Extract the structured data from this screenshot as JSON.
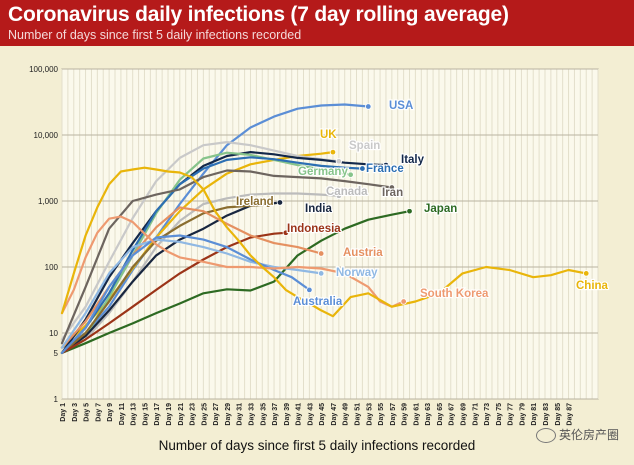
{
  "header": {
    "title": "Coronavirus daily infections (7 day rolling average)",
    "subtitle": "Number of days since first 5 daily infections recorded"
  },
  "watermark": "英伦房产圈",
  "colors": {
    "header_bg": "#b51a1a",
    "chart_bg": "#fbf9ec",
    "grid": "#e3dfcb"
  },
  "chart_data": {
    "type": "line",
    "y_scale": "log",
    "ylim": [
      1,
      100000
    ],
    "y_ticks": [
      {
        "value": 1,
        "label": "1"
      },
      {
        "value": 5,
        "label": "5"
      },
      {
        "value": 10,
        "label": "10"
      },
      {
        "value": 100,
        "label": "100"
      },
      {
        "value": 1000,
        "label": "1,000"
      },
      {
        "value": 10000,
        "label": "10,000"
      },
      {
        "value": 100000,
        "label": "100,000"
      }
    ],
    "xlim": [
      1,
      92
    ],
    "x_ticks": [
      "Day 1",
      "Day 3",
      "Day 5",
      "Day 7",
      "Day 9",
      "Day 11",
      "Day 13",
      "Day 15",
      "Day 17",
      "Day 19",
      "Day 21",
      "Day 23",
      "Day 25",
      "Day 27",
      "Day 29",
      "Day 31",
      "Day 33",
      "Day 35",
      "Day 37",
      "Day 39",
      "Day 41",
      "Day 43",
      "Day 45",
      "Day 47",
      "Day 49",
      "Day 51",
      "Day 53",
      "Day 55",
      "Day 57",
      "Day 59",
      "Day 61",
      "Day 63",
      "Day 65",
      "Day 67",
      "Day 69",
      "Day 71",
      "Day 73",
      "Day 75",
      "Day 77",
      "Day 79",
      "Day 81",
      "Day 83",
      "Day 85",
      "Day 87"
    ],
    "xlabel": "Number of days since first 5 daily infections recorded",
    "series": [
      {
        "name": "USA",
        "color": "#5b8ed6",
        "points": [
          [
            1,
            6
          ],
          [
            5,
            10
          ],
          [
            9,
            25
          ],
          [
            13,
            90
          ],
          [
            17,
            280
          ],
          [
            21,
            900
          ],
          [
            25,
            2600
          ],
          [
            29,
            7000
          ],
          [
            33,
            13000
          ],
          [
            37,
            19000
          ],
          [
            41,
            25000
          ],
          [
            45,
            28000
          ],
          [
            49,
            29000
          ],
          [
            53,
            27000
          ]
        ]
      },
      {
        "name": "UK",
        "color": "#e9b50a",
        "points": [
          [
            1,
            6
          ],
          [
            5,
            13
          ],
          [
            9,
            32
          ],
          [
            13,
            95
          ],
          [
            17,
            280
          ],
          [
            21,
            700
          ],
          [
            25,
            1500
          ],
          [
            29,
            2600
          ],
          [
            33,
            3600
          ],
          [
            37,
            4200
          ],
          [
            41,
            4800
          ],
          [
            45,
            5200
          ],
          [
            47,
            5500
          ]
        ]
      },
      {
        "name": "Spain",
        "color": "#c9c9c9",
        "points": [
          [
            1,
            8
          ],
          [
            5,
            25
          ],
          [
            9,
            120
          ],
          [
            13,
            550
          ],
          [
            17,
            2000
          ],
          [
            21,
            4500
          ],
          [
            25,
            7000
          ],
          [
            29,
            7800
          ],
          [
            33,
            7000
          ],
          [
            37,
            5800
          ],
          [
            41,
            4800
          ],
          [
            45,
            4300
          ],
          [
            48,
            4000
          ]
        ]
      },
      {
        "name": "Italy",
        "color": "#13284a",
        "points": [
          [
            1,
            5
          ],
          [
            5,
            16
          ],
          [
            9,
            70
          ],
          [
            13,
            230
          ],
          [
            17,
            700
          ],
          [
            21,
            1800
          ],
          [
            25,
            3400
          ],
          [
            29,
            4800
          ],
          [
            33,
            5500
          ],
          [
            37,
            5100
          ],
          [
            41,
            4500
          ],
          [
            45,
            4200
          ],
          [
            49,
            3800
          ],
          [
            53,
            3600
          ],
          [
            56,
            3500
          ]
        ]
      },
      {
        "name": "Germany",
        "color": "#87c48b",
        "points": [
          [
            1,
            5
          ],
          [
            5,
            9
          ],
          [
            9,
            35
          ],
          [
            13,
            150
          ],
          [
            17,
            650
          ],
          [
            21,
            2100
          ],
          [
            25,
            4400
          ],
          [
            29,
            5400
          ],
          [
            33,
            5000
          ],
          [
            37,
            4200
          ],
          [
            41,
            3500
          ],
          [
            45,
            3000
          ],
          [
            50,
            2500
          ]
        ]
      },
      {
        "name": "France",
        "color": "#2c6fb3",
        "points": [
          [
            1,
            5
          ],
          [
            5,
            12
          ],
          [
            9,
            40
          ],
          [
            13,
            180
          ],
          [
            17,
            700
          ],
          [
            21,
            1800
          ],
          [
            25,
            3100
          ],
          [
            29,
            4200
          ],
          [
            33,
            4600
          ],
          [
            37,
            4300
          ],
          [
            41,
            3800
          ],
          [
            45,
            3400
          ],
          [
            49,
            3200
          ],
          [
            52,
            3100
          ]
        ]
      },
      {
        "name": "Iran",
        "color": "#6d655f",
        "points": [
          [
            1,
            7
          ],
          [
            5,
            50
          ],
          [
            9,
            380
          ],
          [
            13,
            1000
          ],
          [
            17,
            1250
          ],
          [
            21,
            1500
          ],
          [
            25,
            2300
          ],
          [
            29,
            2900
          ],
          [
            33,
            2800
          ],
          [
            37,
            2400
          ],
          [
            41,
            2300
          ],
          [
            45,
            2200
          ],
          [
            49,
            2000
          ],
          [
            53,
            1800
          ],
          [
            57,
            1600
          ]
        ]
      },
      {
        "name": "Canada",
        "color": "#bcbcbc",
        "points": [
          [
            1,
            5
          ],
          [
            5,
            8
          ],
          [
            9,
            20
          ],
          [
            13,
            60
          ],
          [
            17,
            200
          ],
          [
            21,
            500
          ],
          [
            25,
            900
          ],
          [
            29,
            1100
          ],
          [
            33,
            1250
          ],
          [
            37,
            1300
          ],
          [
            41,
            1300
          ],
          [
            45,
            1250
          ],
          [
            48,
            1200
          ]
        ]
      },
      {
        "name": "India",
        "color": "#18263f",
        "points": [
          [
            1,
            5
          ],
          [
            5,
            9
          ],
          [
            9,
            22
          ],
          [
            13,
            60
          ],
          [
            17,
            150
          ],
          [
            21,
            260
          ],
          [
            25,
            380
          ],
          [
            29,
            600
          ],
          [
            33,
            850
          ],
          [
            36,
            900
          ],
          [
            38,
            950
          ]
        ]
      },
      {
        "name": "Ireland",
        "color": "#8a6d2f",
        "points": [
          [
            1,
            5
          ],
          [
            5,
            10
          ],
          [
            9,
            30
          ],
          [
            13,
            100
          ],
          [
            17,
            250
          ],
          [
            21,
            420
          ],
          [
            25,
            650
          ],
          [
            29,
            800
          ],
          [
            33,
            850
          ],
          [
            36,
            880
          ]
        ]
      },
      {
        "name": "Japan",
        "color": "#2d6a22",
        "points": [
          [
            1,
            5
          ],
          [
            5,
            7
          ],
          [
            9,
            10
          ],
          [
            13,
            14
          ],
          [
            17,
            20
          ],
          [
            21,
            28
          ],
          [
            25,
            40
          ],
          [
            29,
            46
          ],
          [
            33,
            44
          ],
          [
            37,
            60
          ],
          [
            41,
            150
          ],
          [
            45,
            250
          ],
          [
            49,
            380
          ],
          [
            53,
            520
          ],
          [
            57,
            620
          ],
          [
            60,
            700
          ]
        ]
      },
      {
        "name": "Indonesia",
        "color": "#9b3418",
        "points": [
          [
            1,
            5
          ],
          [
            5,
            8
          ],
          [
            9,
            14
          ],
          [
            13,
            25
          ],
          [
            17,
            45
          ],
          [
            21,
            80
          ],
          [
            25,
            130
          ],
          [
            29,
            200
          ],
          [
            33,
            280
          ],
          [
            37,
            320
          ],
          [
            39,
            330
          ]
        ]
      },
      {
        "name": "Austria",
        "color": "#e59060",
        "points": [
          [
            1,
            6
          ],
          [
            5,
            15
          ],
          [
            9,
            50
          ],
          [
            13,
            150
          ],
          [
            17,
            400
          ],
          [
            21,
            800
          ],
          [
            25,
            700
          ],
          [
            29,
            450
          ],
          [
            33,
            300
          ],
          [
            37,
            230
          ],
          [
            41,
            200
          ],
          [
            45,
            160
          ]
        ]
      },
      {
        "name": "Norway",
        "color": "#8fb8e3",
        "points": [
          [
            1,
            6
          ],
          [
            5,
            20
          ],
          [
            9,
            80
          ],
          [
            13,
            200
          ],
          [
            17,
            260
          ],
          [
            21,
            240
          ],
          [
            25,
            200
          ],
          [
            29,
            160
          ],
          [
            33,
            120
          ],
          [
            37,
            100
          ],
          [
            41,
            90
          ],
          [
            45,
            80
          ]
        ]
      },
      {
        "name": "Australia",
        "color": "#5b8ed6",
        "points": [
          [
            1,
            5
          ],
          [
            5,
            12
          ],
          [
            9,
            50
          ],
          [
            13,
            150
          ],
          [
            17,
            280
          ],
          [
            21,
            300
          ],
          [
            25,
            260
          ],
          [
            29,
            200
          ],
          [
            33,
            130
          ],
          [
            37,
            90
          ],
          [
            40,
            70
          ],
          [
            43,
            45
          ]
        ]
      },
      {
        "name": "South Korea",
        "color": "#ee9a70",
        "points": [
          [
            1,
            20
          ],
          [
            3,
            45
          ],
          [
            5,
            140
          ],
          [
            7,
            330
          ],
          [
            9,
            540
          ],
          [
            11,
            580
          ],
          [
            13,
            480
          ],
          [
            15,
            320
          ],
          [
            17,
            220
          ],
          [
            19,
            170
          ],
          [
            21,
            140
          ],
          [
            25,
            120
          ],
          [
            29,
            100
          ],
          [
            33,
            100
          ],
          [
            37,
            95
          ],
          [
            41,
            100
          ],
          [
            45,
            95
          ],
          [
            49,
            80
          ],
          [
            53,
            50
          ],
          [
            55,
            30
          ],
          [
            57,
            25
          ],
          [
            59,
            30
          ]
        ]
      },
      {
        "name": "China",
        "color": "#e9b50a",
        "points": [
          [
            1,
            20
          ],
          [
            3,
            80
          ],
          [
            5,
            300
          ],
          [
            7,
            800
          ],
          [
            9,
            1800
          ],
          [
            11,
            2800
          ],
          [
            13,
            3000
          ],
          [
            15,
            3200
          ],
          [
            17,
            3000
          ],
          [
            19,
            2800
          ],
          [
            21,
            2700
          ],
          [
            23,
            2300
          ],
          [
            25,
            1500
          ],
          [
            27,
            700
          ],
          [
            29,
            400
          ],
          [
            31,
            250
          ],
          [
            33,
            150
          ],
          [
            35,
            100
          ],
          [
            37,
            70
          ],
          [
            39,
            45
          ],
          [
            41,
            35
          ],
          [
            43,
            28
          ],
          [
            45,
            22
          ],
          [
            47,
            18
          ],
          [
            50,
            35
          ],
          [
            53,
            40
          ],
          [
            57,
            25
          ],
          [
            61,
            30
          ],
          [
            65,
            40
          ],
          [
            69,
            80
          ],
          [
            73,
            100
          ],
          [
            77,
            90
          ],
          [
            81,
            70
          ],
          [
            84,
            75
          ],
          [
            87,
            90
          ],
          [
            90,
            80
          ]
        ]
      }
    ]
  }
}
